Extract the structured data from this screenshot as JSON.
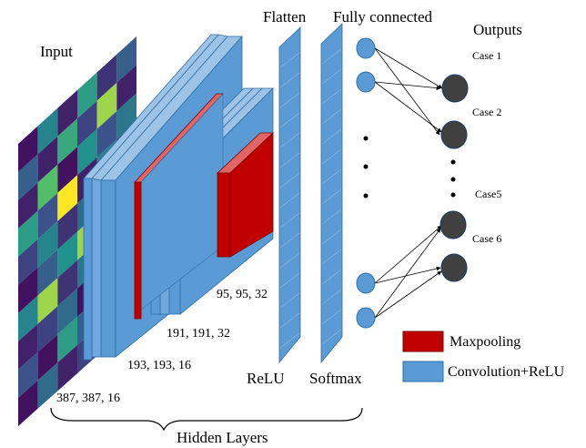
{
  "labels": {
    "input": "Input",
    "flatten": "Flatten",
    "fully_connected": "Fully connected",
    "outputs": "Outputs",
    "relu": "ReLU",
    "softmax": "Softmax",
    "hidden_layers": "Hidden Layers"
  },
  "dims": {
    "input": "387, 387, 16",
    "conv1": "193, 193, 16",
    "conv2": "191, 191, 32",
    "conv3": "95, 95, 32"
  },
  "cases": [
    "Case 1",
    "Case 2",
    "Case5",
    "Case 6"
  ],
  "legend": [
    {
      "label": "Maxpooling",
      "color": "#c00000"
    },
    {
      "label": "Convolution+ReLU",
      "color": "#5b9bd5"
    }
  ],
  "input_grid": {
    "rows": 10,
    "cols": 6,
    "cells": [
      [
        0.05,
        0.45,
        0.1,
        0.55,
        0.15,
        0.3
      ],
      [
        0.3,
        0.1,
        0.6,
        0.2,
        0.85,
        0.1
      ],
      [
        0.1,
        0.7,
        0.05,
        0.5,
        0.25,
        0.4
      ],
      [
        0.55,
        0.25,
        1.0,
        0.1,
        0.45,
        0.1
      ],
      [
        0.2,
        0.45,
        0.15,
        0.35,
        1.0,
        0.3
      ],
      [
        0.05,
        0.3,
        0.5,
        0.85,
        0.2,
        0.05
      ],
      [
        0.45,
        0.85,
        0.15,
        0.4,
        0.65,
        0.25
      ],
      [
        0.1,
        0.2,
        0.35,
        0.05,
        0.3,
        0.1
      ],
      [
        0.25,
        0.05,
        0.55,
        0.3,
        0.15,
        0.05
      ],
      [
        0.05,
        0.35,
        0.1,
        0.2,
        0.05,
        0.15
      ]
    ]
  },
  "colors": {
    "layer_fill": "#5b9bd5",
    "layer_edge": "#2f6ea6",
    "pool_fill": "#c00000",
    "node_blue": "#5b9bd5",
    "node_dark": "#404040"
  }
}
